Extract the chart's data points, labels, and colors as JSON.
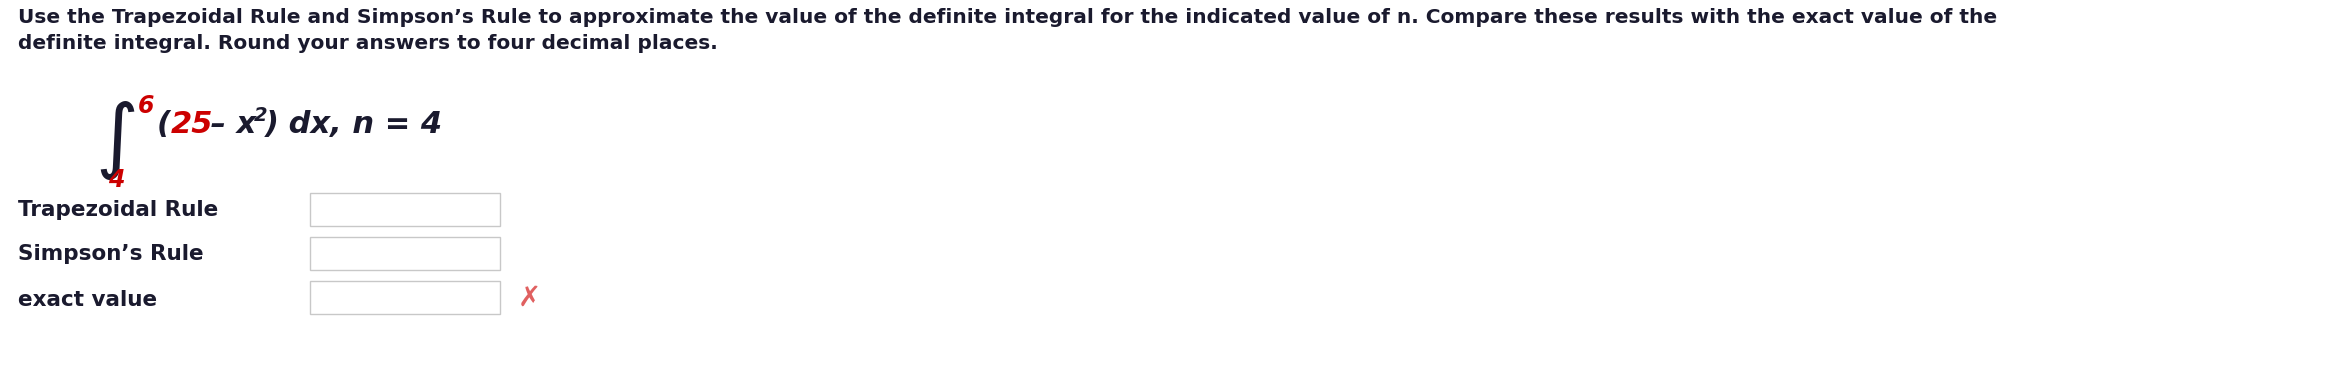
{
  "bg_color": "#ffffff",
  "text_color": "#1a1a2e",
  "red_color": "#cc0000",
  "header_line1": "Use the Trapezoidal Rule and Simpson’s Rule to approximate the value of the definite integral for the indicated value of n. Compare these results with the exact value of the",
  "header_line2": "definite integral. Round your answers to four decimal places.",
  "integral_upper": "6",
  "integral_lower": "4",
  "row_labels": [
    "Trapezoidal Rule",
    "Simpson’s Rule",
    "exact value"
  ],
  "header_fontsize": 14.5,
  "label_fontsize": 15.5,
  "integral_fontsize_main": 22,
  "integral_sign_fontsize": 42,
  "box_color": "#c8c8c8",
  "x_color": "#e06060"
}
